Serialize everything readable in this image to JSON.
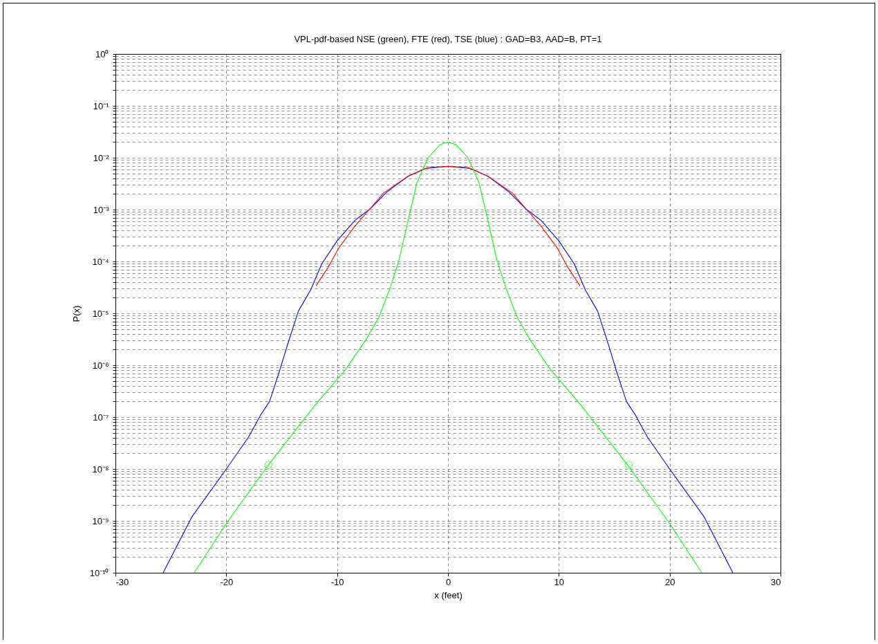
{
  "chart_data": {
    "type": "line",
    "title": "VPL-pdf-based NSE (green), FTE (red), TSE (blue) : GAD=B3, AAD=B, PT=1",
    "xlabel": "x (feet)",
    "ylabel": "P(x)",
    "log": "y",
    "grid": true,
    "xlim": [
      -30,
      30
    ],
    "xticks": [
      -30,
      -20,
      -10,
      0,
      10,
      20,
      30
    ],
    "ylim": [
      1e-10,
      1
    ],
    "yticks": [
      {
        "value": 1e-10,
        "label": "10⁻¹⁰"
      },
      {
        "value": 2e-10,
        "label": null
      },
      {
        "value": 3e-10,
        "label": null
      },
      {
        "value": 4e-10,
        "label": null
      },
      {
        "value": 5e-10,
        "label": null
      },
      {
        "value": 6e-10,
        "label": null
      },
      {
        "value": 7e-10,
        "label": null
      },
      {
        "value": 8e-10,
        "label": null
      },
      {
        "value": 9e-10,
        "label": null
      },
      {
        "value": 1e-09,
        "label": "10⁻⁹"
      },
      {
        "value": 2e-09,
        "label": null
      },
      {
        "value": 3e-09,
        "label": null
      },
      {
        "value": 4e-09,
        "label": null
      },
      {
        "value": 5e-09,
        "label": null
      },
      {
        "value": 6e-09,
        "label": null
      },
      {
        "value": 7e-09,
        "label": null
      },
      {
        "value": 8e-09,
        "label": null
      },
      {
        "value": 9e-09,
        "label": null
      },
      {
        "value": 1e-08,
        "label": "10⁻⁸"
      },
      {
        "value": 2e-08,
        "label": null
      },
      {
        "value": 3e-08,
        "label": null
      },
      {
        "value": 4e-08,
        "label": null
      },
      {
        "value": 5e-08,
        "label": null
      },
      {
        "value": 6e-08,
        "label": null
      },
      {
        "value": 7e-08,
        "label": null
      },
      {
        "value": 8e-08,
        "label": null
      },
      {
        "value": 9e-08,
        "label": null
      },
      {
        "value": 1e-07,
        "label": "10⁻⁷"
      },
      {
        "value": 2e-07,
        "label": null
      },
      {
        "value": 3e-07,
        "label": null
      },
      {
        "value": 4e-07,
        "label": null
      },
      {
        "value": 5e-07,
        "label": null
      },
      {
        "value": 6e-07,
        "label": null
      },
      {
        "value": 7e-07,
        "label": null
      },
      {
        "value": 8e-07,
        "label": null
      },
      {
        "value": 9e-07,
        "label": null
      },
      {
        "value": 1e-06,
        "label": "10⁻⁶"
      },
      {
        "value": 2e-06,
        "label": null
      },
      {
        "value": 3e-06,
        "label": null
      },
      {
        "value": 4e-06,
        "label": null
      },
      {
        "value": 5e-06,
        "label": null
      },
      {
        "value": 6e-06,
        "label": null
      },
      {
        "value": 7e-06,
        "label": null
      },
      {
        "value": 8e-06,
        "label": null
      },
      {
        "value": 9e-06,
        "label": null
      },
      {
        "value": 1e-05,
        "label": "10⁻⁵"
      },
      {
        "value": 2e-05,
        "label": null
      },
      {
        "value": 3e-05,
        "label": null
      },
      {
        "value": 4e-05,
        "label": null
      },
      {
        "value": 5e-05,
        "label": null
      },
      {
        "value": 6e-05,
        "label": null
      },
      {
        "value": 7e-05,
        "label": null
      },
      {
        "value": 8e-05,
        "label": null
      },
      {
        "value": 9e-05,
        "label": null
      },
      {
        "value": 0.0001,
        "label": "10⁻⁴"
      },
      {
        "value": 0.0002,
        "label": null
      },
      {
        "value": 0.0003,
        "label": null
      },
      {
        "value": 0.0004,
        "label": null
      },
      {
        "value": 0.0005,
        "label": null
      },
      {
        "value": 0.0006,
        "label": null
      },
      {
        "value": 0.0007,
        "label": null
      },
      {
        "value": 0.0008,
        "label": null
      },
      {
        "value": 0.0009,
        "label": null
      },
      {
        "value": 0.001,
        "label": "10⁻³"
      },
      {
        "value": 0.002,
        "label": null
      },
      {
        "value": 0.003,
        "label": null
      },
      {
        "value": 0.004,
        "label": null
      },
      {
        "value": 0.005,
        "label": null
      },
      {
        "value": 0.006,
        "label": null
      },
      {
        "value": 0.007,
        "label": null
      },
      {
        "value": 0.008,
        "label": null
      },
      {
        "value": 0.009,
        "label": null
      },
      {
        "value": 0.01,
        "label": "10⁻²"
      },
      {
        "value": 0.02,
        "label": null
      },
      {
        "value": 0.03,
        "label": null
      },
      {
        "value": 0.04,
        "label": null
      },
      {
        "value": 0.05,
        "label": null
      },
      {
        "value": 0.06,
        "label": null
      },
      {
        "value": 0.07,
        "label": null
      },
      {
        "value": 0.08,
        "label": null
      },
      {
        "value": 0.09,
        "label": null
      },
      {
        "value": 0.1,
        "label": "10⁻¹"
      },
      {
        "value": 0.2,
        "label": null
      },
      {
        "value": 0.3,
        "label": null
      },
      {
        "value": 0.4,
        "label": null
      },
      {
        "value": 0.5,
        "label": null
      },
      {
        "value": 0.6,
        "label": null
      },
      {
        "value": 0.7,
        "label": null
      },
      {
        "value": 0.8,
        "label": null
      },
      {
        "value": 0.9,
        "label": null
      },
      {
        "value": 1,
        "label": "10⁰"
      }
    ],
    "series": [
      {
        "color": "#0000ff",
        "x": [
          -25.7,
          -23.1,
          -20,
          -18,
          -16.9,
          -16.1,
          -15.3,
          -14.5,
          -13.5,
          -12.4,
          -11.4,
          -10,
          -8.4,
          -7.1,
          -5.5,
          -3.6,
          -2,
          0,
          2,
          3.6,
          5.5,
          7.1,
          8.4,
          10,
          11.4,
          12.4,
          13.5,
          14.5,
          15.3,
          16.1,
          16.9,
          18,
          20,
          23.1,
          25.7
        ],
        "values": [
          1e-10,
          1.2e-09,
          1e-08,
          4.1e-08,
          1.1e-07,
          2e-07,
          6.6e-07,
          2.4e-06,
          1.1e-05,
          2.8e-05,
          8.9e-05,
          0.00025,
          0.00062,
          0.001,
          0.0022,
          0.0044,
          0.0062,
          0.0068,
          0.0062,
          0.0044,
          0.0022,
          0.001,
          0.00062,
          0.00025,
          8.9e-05,
          2.8e-05,
          1.1e-05,
          2.4e-06,
          6.6e-07,
          2e-07,
          1.1e-07,
          4.1e-08,
          1e-08,
          1.2e-09,
          1e-10
        ]
      },
      {
        "color": "#ff0000",
        "x": [
          -11.9,
          -10.8,
          -9.8,
          -8.4,
          -7.1,
          -5.8,
          -3.6,
          -1.8,
          0,
          1.8,
          3.6,
          5.8,
          7.1,
          8.4,
          9.8,
          10.8,
          11.9
        ],
        "values": [
          3.4e-05,
          7.8e-05,
          0.00019,
          0.00048,
          0.001,
          0.0021,
          0.0044,
          0.0065,
          0.0068,
          0.0065,
          0.0044,
          0.0021,
          0.001,
          0.00048,
          0.00019,
          7.8e-05,
          3.4e-05
        ]
      },
      {
        "color": "#00ff00",
        "x": [
          -22.9,
          -20,
          -16.2,
          -14.5,
          -11.9,
          -9.2,
          -7.4,
          -6.2,
          -5.2,
          -4.4,
          -3.6,
          -2.8,
          -1.8,
          -0.7,
          0,
          0.7,
          1.8,
          2.8,
          3.6,
          4.4,
          5.2,
          6.2,
          7.4,
          9.2,
          11.9,
          14.5,
          16.2,
          20,
          22.9
        ],
        "values": [
          1e-10,
          8.9e-10,
          1.2e-08,
          3.5e-08,
          1.8e-07,
          8.5e-07,
          3.1e-06,
          8.7e-06,
          3.2e-05,
          0.00011,
          0.00062,
          0.0033,
          0.01,
          0.018,
          0.02,
          0.018,
          0.01,
          0.0033,
          0.00062,
          0.00011,
          3.2e-05,
          8.7e-06,
          3.1e-06,
          8.5e-07,
          1.8e-07,
          3.5e-08,
          1.2e-08,
          8.9e-10,
          1e-10
        ]
      },
      {
        "type": "scatter",
        "marker": "circle",
        "color": "#00ff00",
        "x": [
          -16.2,
          16.3
        ],
        "values": [
          1.2e-08,
          1.2e-08
        ]
      }
    ]
  }
}
